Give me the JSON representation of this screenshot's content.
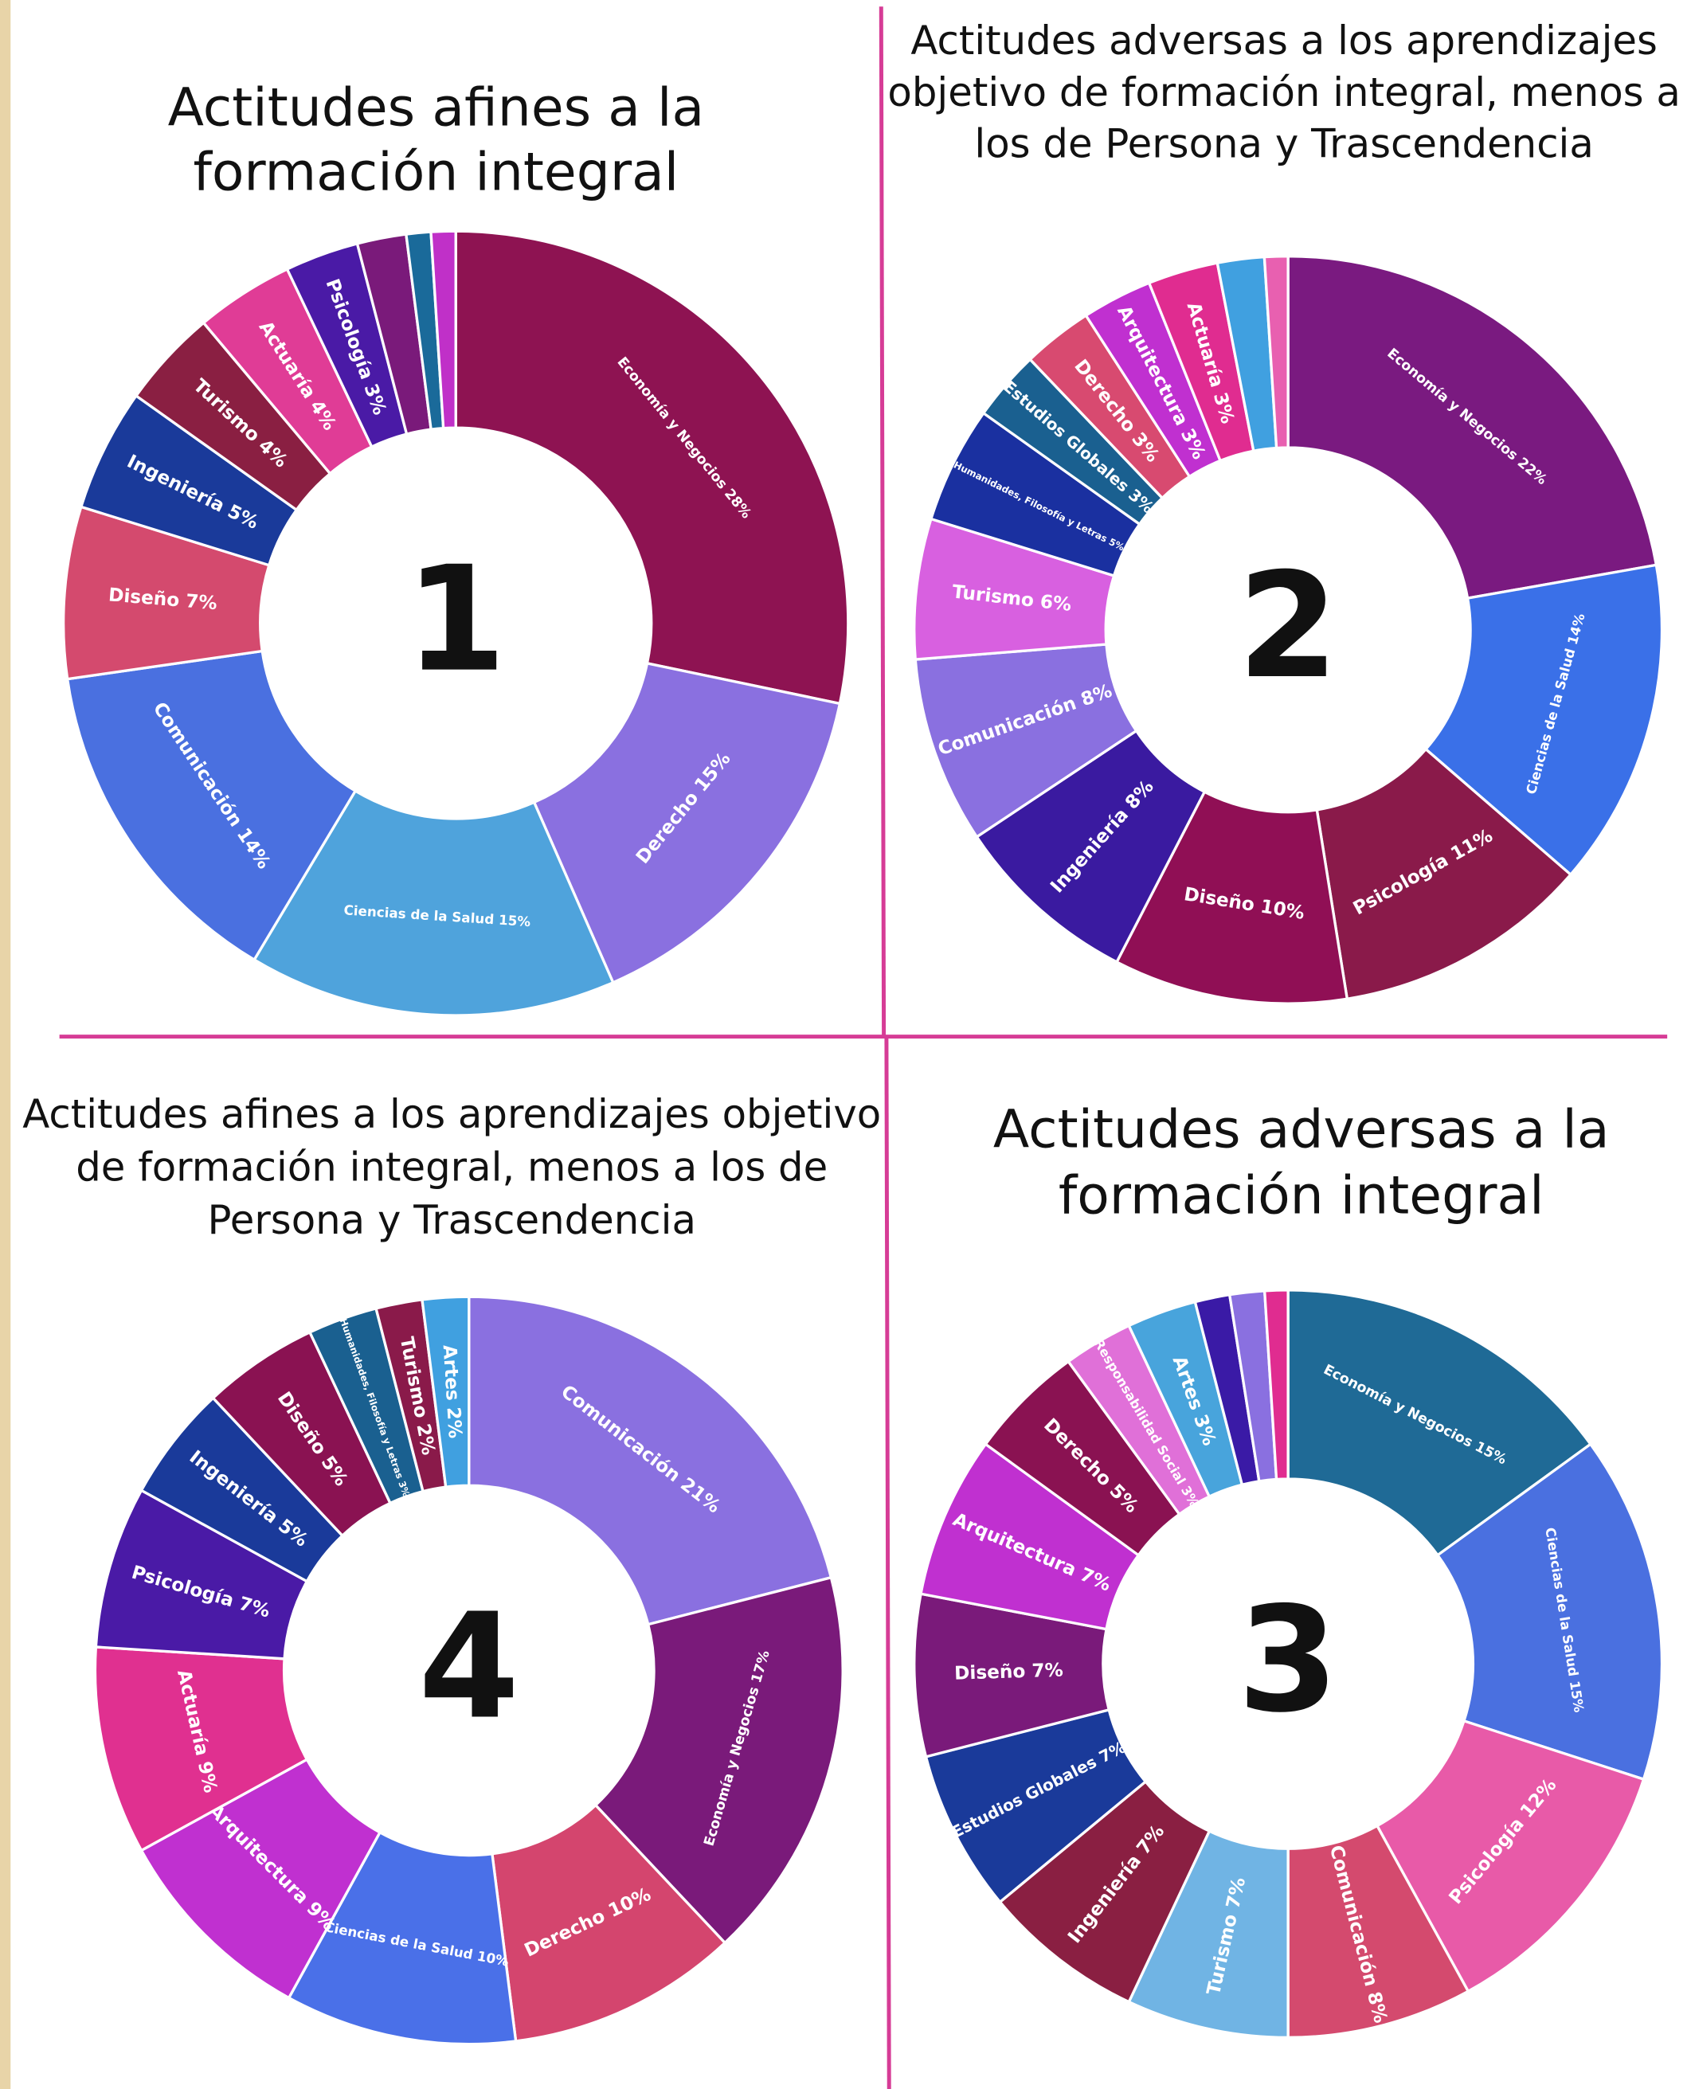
{
  "chart_data": [
    {
      "type": "donut",
      "title": [
        "Actitudes afines a la",
        "formación integral"
      ],
      "center_label": "1",
      "value_labels": [
        "Economía y Negocios 28%",
        "Derecho 15%",
        "Ciencias de la Salud 15%",
        "Comunicación 14%",
        "Diseño 7%",
        "Ingeniería 5%",
        "Turismo 4%",
        "Actuaría 4%",
        "Psicología 3%",
        null,
        null,
        null
      ],
      "values": [
        28,
        15,
        15,
        14,
        7,
        5,
        4,
        4,
        3,
        2,
        1,
        1
      ],
      "colors": [
        "#8e1352",
        "#8a70e0",
        "#4fa3dc",
        "#4a70e0",
        "#d44a6e",
        "#1a3a9a",
        "#8a1f42",
        "#e03c96",
        "#4a1aa6",
        "#7a1a7a",
        "#1a6a9a",
        "#c030c8"
      ]
    },
    {
      "type": "donut",
      "title": [
        "Actitudes adversas a los aprendizajes",
        "objetivo de formación integral, menos a",
        "los de Persona y Trascendencia"
      ],
      "center_label": "2",
      "value_labels": [
        "Economía y Negocios 22%",
        "Ciencias de la Salud 14%",
        "Psicología 11%",
        "Diseño 10%",
        "Ingeniería 8%",
        "Comunicación 8%",
        "Turismo 6%",
        "Humanidades, Filosofía y Letras 5%",
        "Estudios Globales 3%",
        "Derecho 3%",
        "Arquitectura 3%",
        "Actuaría 3%",
        null,
        null
      ],
      "values": [
        22,
        14,
        11,
        10,
        8,
        8,
        6,
        5,
        3,
        3,
        3,
        3,
        2,
        1
      ],
      "colors": [
        "#7a1a80",
        "#3a70e8",
        "#8a1a4a",
        "#900f55",
        "#3a1aa0",
        "#8a70e0",
        "#d860e0",
        "#1a30a0",
        "#1a6090",
        "#d84a70",
        "#c030d0",
        "#e02c90",
        "#40a0e0",
        "#e860b0"
      ]
    },
    {
      "type": "donut",
      "title": [
        "Actitudes afines a los aprendizajes objetivo",
        "de formación integral, menos a los de",
        "Persona y Trascendencia"
      ],
      "center_label": "4",
      "value_labels": [
        "Comunicación 21%",
        "Economía y Negocios 17%",
        "Derecho 10%",
        "Ciencias de la Salud 10%",
        "Arquitectura 9%",
        "Actuaría 9%",
        "Psicología 7%",
        "Ingeniería 5%",
        "Diseño 5%",
        "Humanidades, Filosofía y Letras 3%",
        "Turismo 2%",
        "Artes 2%"
      ],
      "values": [
        21,
        17,
        10,
        10,
        9,
        9,
        7,
        5,
        5,
        3,
        2,
        2
      ],
      "colors": [
        "#8a70e0",
        "#7a1a7a",
        "#d4456e",
        "#4a70e8",
        "#c030d0",
        "#e03090",
        "#4a1aa6",
        "#1a3a9a",
        "#8a1252",
        "#1a6090",
        "#8a1a4a",
        "#40a0e0"
      ]
    },
    {
      "type": "donut",
      "title": [
        "Actitudes adversas a la",
        "formación integral"
      ],
      "center_label": "3",
      "value_labels": [
        "Economía y Negocios 15%",
        "Ciencias de la Salud 15%",
        "Psicología 12%",
        "Comunicación 8%",
        "Turismo 7%",
        "Ingeniería 7%",
        "Estudios Globales 7%",
        "Diseño 7%",
        "Arquitectura 7%",
        "Derecho 5%",
        "Responsabilidad Social 3%",
        "Artes 3%",
        null,
        null,
        null
      ],
      "values": [
        15,
        15,
        12,
        8,
        7,
        7,
        7,
        7,
        7,
        5,
        3,
        3,
        1.5,
        1.5,
        1
      ],
      "colors": [
        "#1f6a96",
        "#4a70e0",
        "#e85aa8",
        "#d44a6e",
        "#70b4e4",
        "#8a1f42",
        "#1a3a9a",
        "#7a1a7a",
        "#c030d0",
        "#8a1252",
        "#e070d8",
        "#48a4dc",
        "#3a1aa6",
        "#8a70e0",
        "#e02c90"
      ]
    }
  ]
}
